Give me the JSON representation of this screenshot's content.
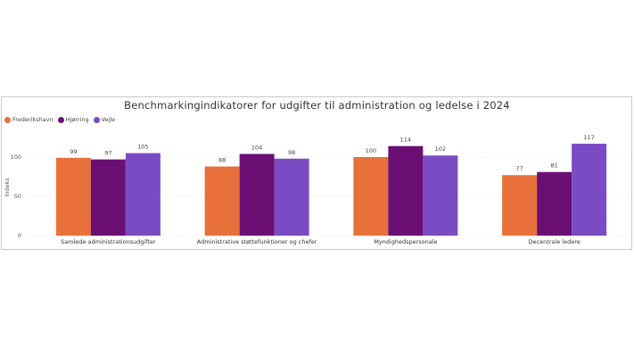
{
  "chart_data": {
    "type": "bar",
    "title": "Benchmarkingindikatorer for udgifter til administration og ledelse i 2024",
    "ylabel": "Indeks",
    "xlabel": "",
    "ylim": [
      0,
      125
    ],
    "yticks": [
      0,
      50,
      100
    ],
    "grid": true,
    "legend_position": "top-left",
    "categories": [
      "Samlede administrationsudgifter",
      "Administrative støttefunktioner og chefer",
      "Myndighedspersonale",
      "Decentrale ledere"
    ],
    "series": [
      {
        "name": "Frederikshavn",
        "color": "#e8703a",
        "values": [
          99,
          88,
          100,
          77
        ]
      },
      {
        "name": "Hjørring",
        "color": "#6b0f75",
        "values": [
          97,
          104,
          114,
          81
        ]
      },
      {
        "name": "Vejle",
        "color": "#7b4bc4",
        "values": [
          105,
          98,
          102,
          117
        ]
      }
    ]
  }
}
